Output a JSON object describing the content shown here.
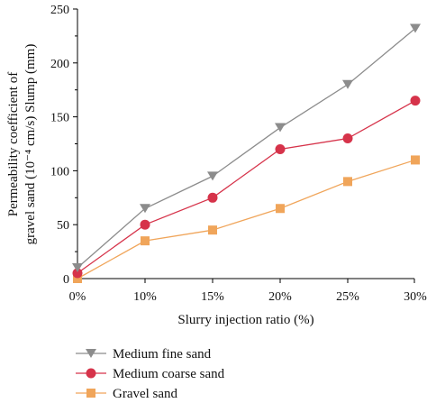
{
  "chart_data": {
    "type": "line",
    "categories": [
      "0%",
      "10%",
      "15%",
      "20%",
      "25%",
      "30%"
    ],
    "series": [
      {
        "name": "Medium fine sand",
        "values": [
          10,
          65,
          95,
          140,
          180,
          232
        ],
        "color": "#8c8c8c",
        "marker": "triangle-down"
      },
      {
        "name": "Medium coarse sand",
        "values": [
          5,
          50,
          75,
          120,
          130,
          165
        ],
        "color": "#d6334a",
        "marker": "circle"
      },
      {
        "name": "Gravel sand",
        "values": [
          0,
          35,
          45,
          65,
          90,
          110
        ],
        "color": "#f0a55a",
        "marker": "square"
      }
    ],
    "xlabel": "Slurry injection ratio (%)",
    "ylabel_lines": [
      "Permeability coefficient of",
      "gravel sand (10⁻⁴ cm/s) Slump (mm)"
    ],
    "ylim": [
      0,
      250
    ],
    "yticks": [
      0,
      50,
      100,
      150,
      200,
      250
    ],
    "grid": false,
    "legend_position": "bottom-left"
  }
}
